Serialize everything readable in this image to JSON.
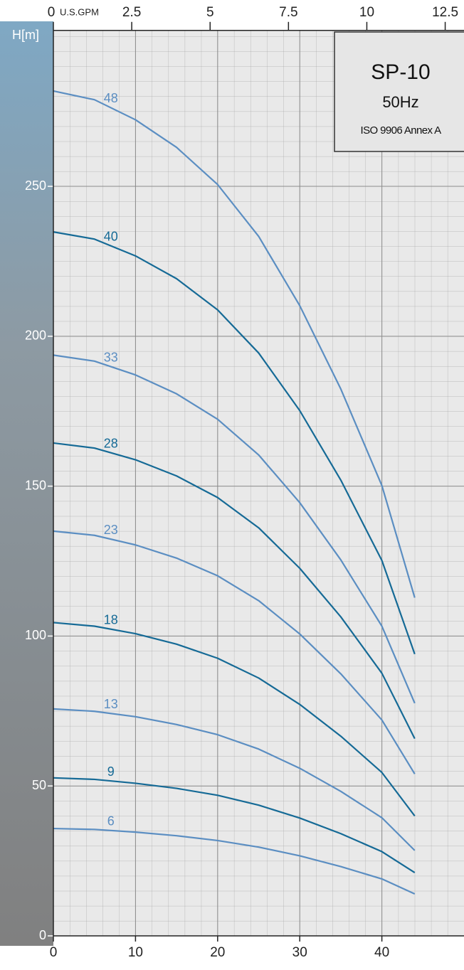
{
  "chart_data": {
    "type": "line",
    "title": "SP-10",
    "subtitle": "50Hz",
    "annotation": "ISO 9906 Annex A",
    "ylabel": "H[m]",
    "x2label": "U.S.GPM",
    "x": [
      0,
      5,
      10,
      15,
      20,
      25,
      30,
      35,
      40,
      44
    ],
    "series": [
      {
        "name": "48",
        "color": "#5b8ec2",
        "values": [
          281.8,
          278.9,
          272.2,
          263,
          250.6,
          233.3,
          210.2,
          182.4,
          150.2,
          112.8
        ]
      },
      {
        "name": "40",
        "color": "#156a96",
        "values": [
          234.8,
          232.4,
          226.8,
          219.2,
          208.8,
          194.4,
          175.2,
          152,
          125.2,
          94
        ]
      },
      {
        "name": "33",
        "color": "#5b8ec2",
        "values": [
          193.7,
          191.7,
          187.1,
          180.8,
          172.3,
          160.4,
          144.5,
          125.4,
          103.3,
          77.6
        ]
      },
      {
        "name": "28",
        "color": "#156a96",
        "values": [
          164.4,
          162.7,
          158.8,
          153.4,
          146.2,
          136.1,
          122.6,
          106.4,
          87.6,
          65.8
        ]
      },
      {
        "name": "23",
        "color": "#5b8ec2",
        "values": [
          135,
          133.6,
          130.4,
          126,
          120.1,
          111.8,
          100.7,
          87.4,
          72,
          54
        ]
      },
      {
        "name": "18",
        "color": "#156a96",
        "values": [
          104.5,
          103.3,
          100.8,
          97.3,
          92.6,
          86,
          77.2,
          66.6,
          54.5,
          40
        ]
      },
      {
        "name": "13",
        "color": "#5b8ec2",
        "values": [
          75.7,
          74.9,
          73.1,
          70.5,
          67.1,
          62.3,
          55.9,
          48.2,
          39.4,
          28.5
        ]
      },
      {
        "name": "9",
        "color": "#156a96",
        "values": [
          52.7,
          52.2,
          50.9,
          49.2,
          46.9,
          43.6,
          39.3,
          34.1,
          28.1,
          21.1
        ]
      },
      {
        "name": "6",
        "color": "#5b8ec2",
        "values": [
          35.8,
          35.5,
          34.6,
          33.4,
          31.8,
          29.6,
          26.7,
          23.1,
          19,
          14
        ]
      }
    ],
    "xlim": [
      0,
      50
    ],
    "xticks": [
      0,
      10,
      20,
      30,
      40
    ],
    "ylim": [
      0,
      302
    ],
    "yticks": [
      0,
      50,
      100,
      150,
      200,
      250
    ],
    "x2lim": [
      0,
      13.1
    ],
    "x2ticks": [
      0,
      2.5,
      5,
      7.5,
      10,
      12.5
    ],
    "grid": true
  }
}
